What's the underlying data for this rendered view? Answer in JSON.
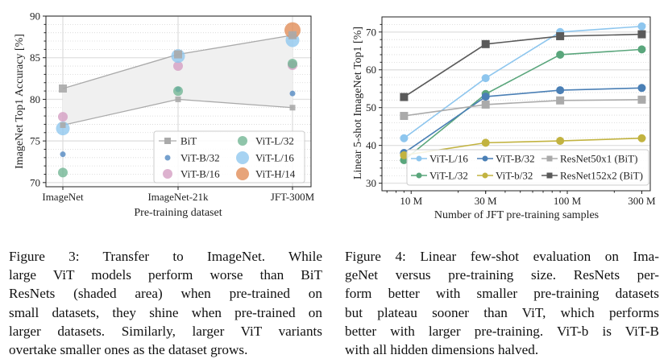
{
  "figure3": {
    "caption_lines": [
      "Figure 3:  Transfer to ImageNet.   While",
      "large ViT models perform worse than BiT",
      "ResNets (shaded area) when pre-trained on",
      "small datasets, they shine when pre-trained on",
      "larger datasets.  Similarly, larger ViT variants",
      "overtake smaller ones as the dataset grows."
    ]
  },
  "figure4": {
    "caption_lines": [
      "Figure 4: Linear few-shot evaluation on Ima-",
      "geNet versus pre-training size.  ResNets per-",
      "form better with smaller pre-training datasets",
      "but plateau sooner than ViT, which performs",
      "better with larger pre-training. ViT-b is ViT-B",
      "with all hidden dimensions halved."
    ]
  },
  "chart_data": [
    {
      "type": "scatter",
      "title": "",
      "xlabel": "Pre-training dataset",
      "ylabel": "ImageNet Top1 Accuracy [%]",
      "categories": [
        "ImageNet",
        "ImageNet-21k",
        "JFT-300M"
      ],
      "ylim": [
        69.5,
        90
      ],
      "yticks": [
        70,
        75,
        80,
        85,
        90
      ],
      "grid": true,
      "legend_position": "bottom-right",
      "bit_band": {
        "name": "BiT",
        "color": "#aaaaaa",
        "upper": [
          81.3,
          85.4,
          87.7
        ],
        "lower": [
          76.9,
          80.0,
          79.0
        ]
      },
      "series": [
        {
          "name": "ViT-B/32",
          "color": "#4f86c0",
          "size": "small",
          "values": [
            73.4,
            81.2,
            80.7
          ]
        },
        {
          "name": "ViT-B/16",
          "color": "#d39cc2",
          "size": "medium",
          "values": [
            77.9,
            84.0,
            84.1
          ]
        },
        {
          "name": "ViT-L/32",
          "color": "#6fb592",
          "size": "medium",
          "values": [
            71.2,
            81.0,
            84.3
          ]
        },
        {
          "name": "ViT-L/16",
          "color": "#8ec6ee",
          "size": "large",
          "values": [
            76.5,
            85.2,
            87.1
          ]
        },
        {
          "name": "ViT-H/14",
          "color": "#e08a55",
          "size": "xlarge",
          "values": [
            null,
            null,
            88.3
          ]
        }
      ],
      "legend": [
        "BiT",
        "ViT-L/32",
        "ViT-B/32",
        "ViT-L/16",
        "ViT-B/16",
        "ViT-H/14"
      ]
    },
    {
      "type": "line",
      "title": "",
      "xlabel": "Number of JFT pre-training samples",
      "ylabel": "Linear 5-shot ImageNet Top1 [%]",
      "xscale": "log",
      "x": [
        9,
        30,
        90,
        300
      ],
      "x_unit": "M",
      "xticks": [
        "10 M",
        "30 M",
        "100 M",
        "300 M"
      ],
      "xtick_values": [
        10,
        30,
        100,
        300
      ],
      "xlim": [
        6.5,
        340
      ],
      "ylim": [
        28,
        74
      ],
      "yticks": [
        30,
        40,
        50,
        60,
        70
      ],
      "grid": true,
      "legend_position": "bottom-right",
      "series": [
        {
          "name": "ViT-L/16",
          "color": "#8ec6ee",
          "marker": "circle",
          "values": [
            41.9,
            57.8,
            70.0,
            71.5
          ]
        },
        {
          "name": "ViT-L/32",
          "color": "#5aa67c",
          "marker": "circle",
          "values": [
            36.1,
            53.6,
            64.0,
            65.4
          ]
        },
        {
          "name": "ViT-B/32",
          "color": "#4a7fb5",
          "marker": "circle",
          "values": [
            38.0,
            52.9,
            54.6,
            55.2
          ]
        },
        {
          "name": "ViT-b/32",
          "color": "#c2b340",
          "marker": "circle",
          "values": [
            37.4,
            40.7,
            41.2,
            41.9
          ]
        },
        {
          "name": "ResNet50x1 (BiT)",
          "color": "#aaaaaa",
          "marker": "square",
          "values": [
            47.8,
            50.8,
            51.9,
            52.1
          ]
        },
        {
          "name": "ResNet152x2 (BiT)",
          "color": "#5a5a5a",
          "marker": "square",
          "values": [
            52.8,
            66.8,
            68.9,
            69.4
          ]
        }
      ],
      "legend": [
        "ViT-L/16",
        "ViT-B/32",
        "ResNet50x1 (BiT)",
        "ViT-L/32",
        "ViT-b/32",
        "ResNet152x2 (BiT)"
      ]
    }
  ]
}
